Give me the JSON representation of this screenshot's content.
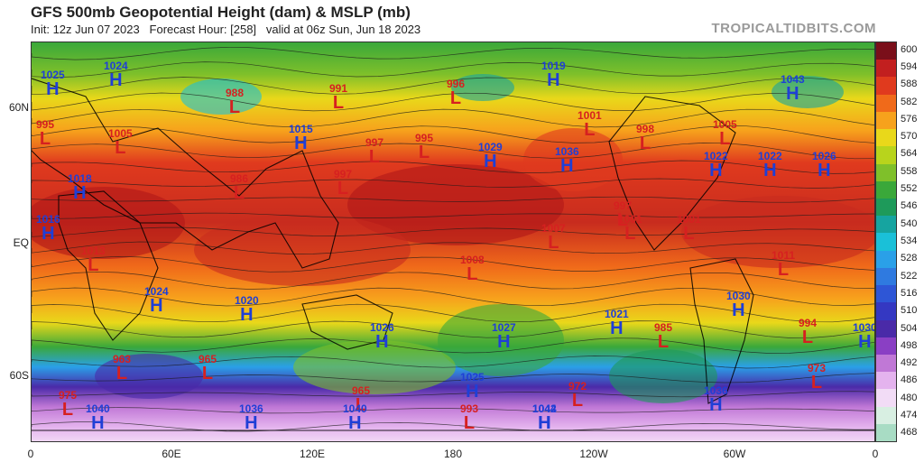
{
  "header": {
    "title": "GFS 500mb Geopotential Height (dam) & MSLP (mb)",
    "subtitle": "Init: 12z Jun 07 2023   Forecast Hour: [258]   valid at 06z Sun, Jun 18 2023",
    "brand": "TROPICALTIDBITS.COM"
  },
  "axes": {
    "lat_labels": [
      "60N",
      "EQ",
      "60S"
    ],
    "lon_labels": [
      "0",
      "60E",
      "120E",
      "180",
      "120W",
      "60W",
      "0"
    ]
  },
  "colorbar": {
    "levels": [
      "600",
      "594",
      "588",
      "582",
      "576",
      "570",
      "564",
      "558",
      "552",
      "546",
      "540",
      "534",
      "528",
      "522",
      "516",
      "510",
      "504",
      "498",
      "492",
      "486",
      "480",
      "474",
      "468"
    ],
    "colors": [
      "#7a0f1a",
      "#c21f1f",
      "#e03a1e",
      "#f06a1a",
      "#f7a21c",
      "#e9d81a",
      "#b8d41c",
      "#7fc02a",
      "#3aa83a",
      "#1e9a5a",
      "#16a4a0",
      "#1ac0d8",
      "#2aa0e8",
      "#2f7ae0",
      "#2e56d6",
      "#3438c2",
      "#4a2aa8",
      "#8a3fc4",
      "#c078d6",
      "#e4b3ee",
      "#f2dcf6",
      "#d8efe2",
      "#a8dcc4"
    ]
  },
  "pressure_centers": [
    {
      "type": "H",
      "value": "1025"
    },
    {
      "type": "H",
      "value": "1024"
    },
    {
      "type": "L",
      "value": "988"
    },
    {
      "type": "L",
      "value": "991"
    },
    {
      "type": "L",
      "value": "996"
    },
    {
      "type": "H",
      "value": "1019"
    },
    {
      "type": "H",
      "value": "1043"
    },
    {
      "type": "L",
      "value": "995"
    },
    {
      "type": "L",
      "value": "1005"
    },
    {
      "type": "H",
      "value": "1015"
    },
    {
      "type": "L",
      "value": "997"
    },
    {
      "type": "L",
      "value": "995"
    },
    {
      "type": "H",
      "value": "1029"
    },
    {
      "type": "H",
      "value": "1036"
    },
    {
      "type": "L",
      "value": "1001"
    },
    {
      "type": "L",
      "value": "998"
    },
    {
      "type": "L",
      "value": "1005"
    },
    {
      "type": "H",
      "value": "1022"
    },
    {
      "type": "H",
      "value": "1022"
    },
    {
      "type": "H",
      "value": "1026"
    },
    {
      "type": "H",
      "value": "1018"
    },
    {
      "type": "L",
      "value": "986"
    },
    {
      "type": "L",
      "value": "997"
    },
    {
      "type": "L",
      "value": "1001"
    },
    {
      "type": "H",
      "value": "1016"
    },
    {
      "type": "L",
      "value": "1013"
    },
    {
      "type": "L",
      "value": "1007"
    },
    {
      "type": "L",
      "value": "1001"
    },
    {
      "type": "L",
      "value": "997"
    },
    {
      "type": "L",
      "value": "1008"
    },
    {
      "type": "L",
      "value": "1011"
    },
    {
      "type": "H",
      "value": "1024"
    },
    {
      "type": "H",
      "value": "1020"
    },
    {
      "type": "H",
      "value": "1026"
    },
    {
      "type": "H",
      "value": "1027"
    },
    {
      "type": "H",
      "value": "1021"
    },
    {
      "type": "L",
      "value": "985"
    },
    {
      "type": "H",
      "value": "1030"
    },
    {
      "type": "L",
      "value": "994"
    },
    {
      "type": "H",
      "value": "1030"
    },
    {
      "type": "L",
      "value": "963"
    },
    {
      "type": "L",
      "value": "965"
    },
    {
      "type": "L",
      "value": "975"
    },
    {
      "type": "H",
      "value": "1025"
    },
    {
      "type": "L",
      "value": "972"
    },
    {
      "type": "H",
      "value": "1036"
    },
    {
      "type": "L",
      "value": "973"
    },
    {
      "type": "L",
      "value": "965"
    },
    {
      "type": "H",
      "value": "1040"
    },
    {
      "type": "H",
      "value": "1036"
    },
    {
      "type": "H",
      "value": "1040"
    },
    {
      "type": "L",
      "value": "993"
    },
    {
      "type": "H",
      "value": "1044"
    },
    {
      "type": "H",
      "value": "1042"
    }
  ]
}
